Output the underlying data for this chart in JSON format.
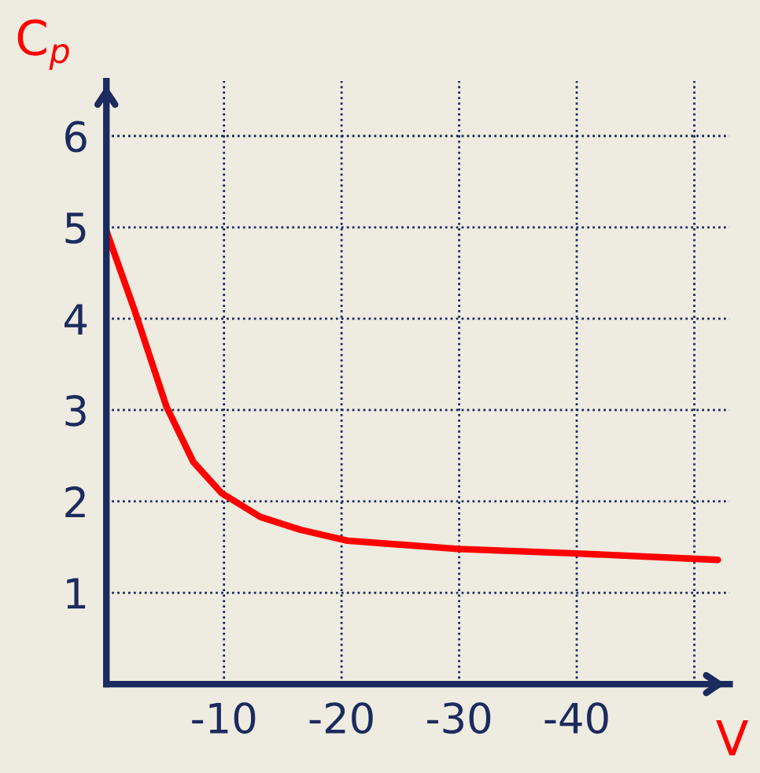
{
  "chart_data": {
    "type": "line",
    "xlabel": "V",
    "ylabel": "C$_{p}$",
    "x": [
      0,
      -2.4,
      -5.1,
      -7.4,
      -9.8,
      -13.1,
      -16.5,
      -20.5,
      -29.9,
      -40,
      -52
    ],
    "series": [
      {
        "color": "#ff0000",
        "values": [
          4.96,
          4.09,
          3.04,
          2.43,
          2.09,
          1.83,
          1.69,
          1.57,
          1.48,
          1.43,
          1.36
        ]
      }
    ],
    "xlim": [
      0,
      -53
    ],
    "ylim": [
      0,
      6.6
    ],
    "xticks": [
      -10,
      -20,
      -30,
      -40,
      {
        "value": -50,
        "label": null
      }
    ],
    "yticks": [
      1,
      2,
      3,
      4,
      5,
      6
    ],
    "grid": true,
    "marker": "none",
    "line_style": "solid"
  }
}
